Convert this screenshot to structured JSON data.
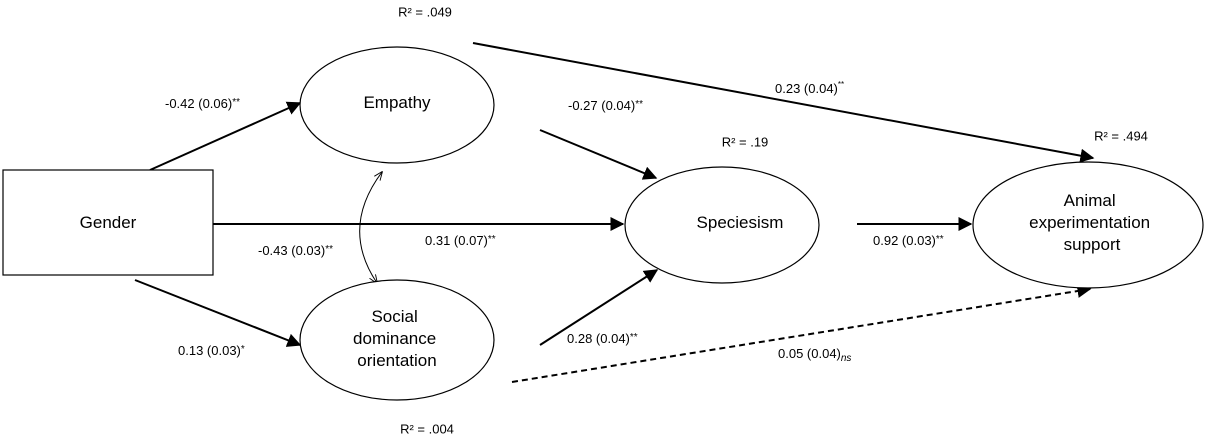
{
  "nodes": [
    {
      "id": "gender",
      "lines": [
        "Gender"
      ]
    },
    {
      "id": "empathy",
      "lines": [
        "Empathy"
      ],
      "r2": "R² = .049"
    },
    {
      "id": "sdo",
      "lines": [
        "Social",
        "dominance",
        "orientation"
      ],
      "r2": "R² = .004"
    },
    {
      "id": "speciesism",
      "lines": [
        "Speciesism"
      ],
      "r2": "R² = .19"
    },
    {
      "id": "animal",
      "lines": [
        "Animal",
        "experimentation",
        "support"
      ],
      "r2": "R² = .494"
    }
  ],
  "edges": [
    {
      "label": "-0.42 (0.06)",
      "sig": "**"
    },
    {
      "label": "0.13 (0.03)",
      "sig": "*"
    },
    {
      "label": "0.31 (0.07)",
      "sig": "**"
    },
    {
      "label": "-0.27 (0.04)",
      "sig": "**"
    },
    {
      "label": "0.28 (0.04)",
      "sig": "**"
    },
    {
      "label": "0.23 (0.04)",
      "sig": "**"
    },
    {
      "label": "0.92 (0.03)",
      "sig": "**"
    },
    {
      "label": "0.05 (0.04)",
      "sig": "ns"
    }
  ],
  "correlation": {
    "label": "-0.43 (0.03)",
    "sig": "**"
  }
}
